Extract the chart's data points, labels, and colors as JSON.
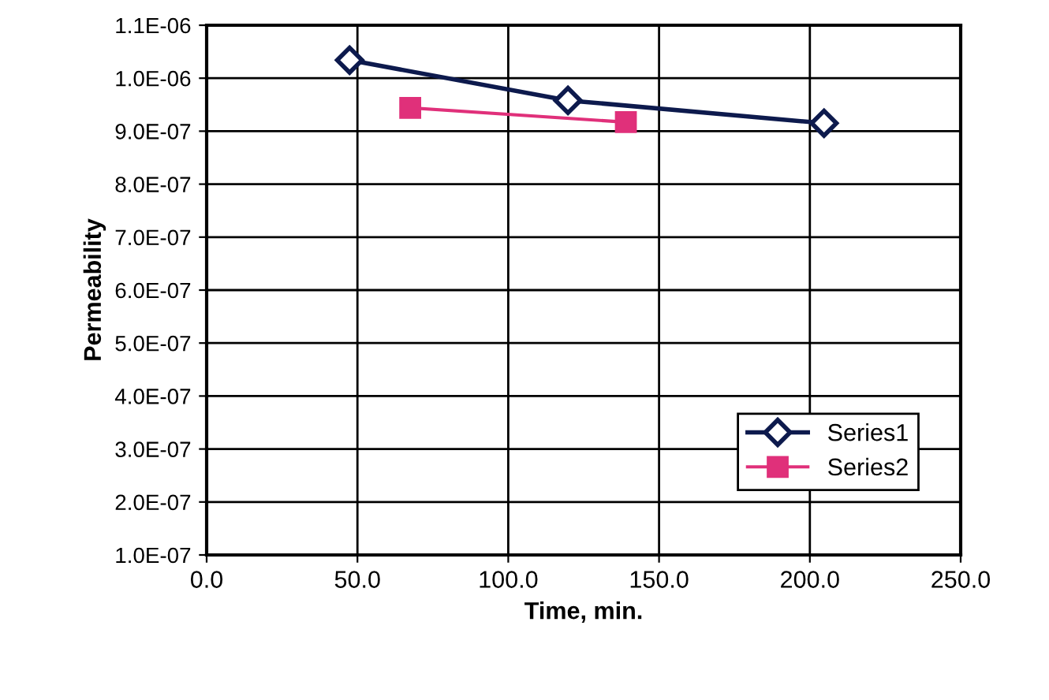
{
  "chart_data": {
    "type": "line",
    "xlabel": "Time, min.",
    "ylabel": "Permeability",
    "xlim": [
      0,
      250
    ],
    "xticks": [
      {
        "value": 0,
        "label": "0.0"
      },
      {
        "value": 50,
        "label": "50.0"
      },
      {
        "value": 100,
        "label": "100.0"
      },
      {
        "value": 150,
        "label": "150.0"
      },
      {
        "value": 200,
        "label": "200.0"
      },
      {
        "value": 250,
        "label": "250.0"
      }
    ],
    "ylim": [
      1e-07,
      1.1e-06
    ],
    "yticks": [
      {
        "value": 1e-07,
        "label": "1.0E-07"
      },
      {
        "value": 2e-07,
        "label": "2.0E-07"
      },
      {
        "value": 3e-07,
        "label": "3.0E-07"
      },
      {
        "value": 4e-07,
        "label": "4.0E-07"
      },
      {
        "value": 5e-07,
        "label": "5.0E-07"
      },
      {
        "value": 6e-07,
        "label": "6.0E-07"
      },
      {
        "value": 7e-07,
        "label": "7.0E-07"
      },
      {
        "value": 8e-07,
        "label": "8.0E-07"
      },
      {
        "value": 9e-07,
        "label": "9.0E-07"
      },
      {
        "value": 1e-06,
        "label": "1.0E-06"
      },
      {
        "value": 1.1e-06,
        "label": "1.1E-06"
      }
    ],
    "grid": true,
    "legend": "bottom right",
    "series": [
      {
        "name": "Series1",
        "color": "#0d1a4d",
        "marker": "diamond",
        "x": [
          47.4,
          119.8,
          204.7
        ],
        "values": [
          1.034e-06,
          9.58e-07,
          9.15e-07
        ]
      },
      {
        "name": "Series2",
        "color": "#e0307a",
        "marker": "square",
        "x": [
          67.5,
          139.0
        ],
        "values": [
          9.44e-07,
          9.17e-07
        ]
      }
    ]
  }
}
